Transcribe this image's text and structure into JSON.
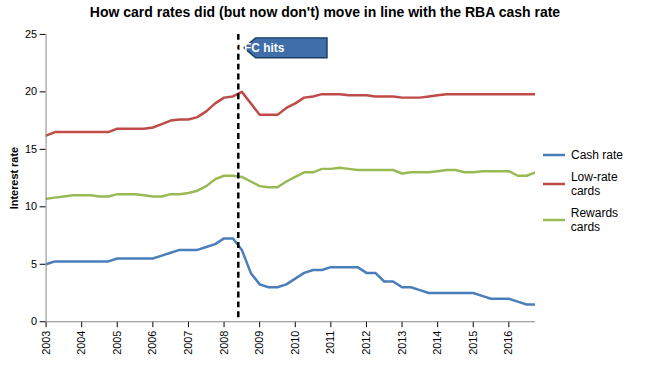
{
  "chart_data": {
    "type": "line",
    "title": "How card rates did (but now don't) move in line with the RBA cash rate",
    "y_label": "Interest rate",
    "x": [
      2003,
      2003.25,
      2003.5,
      2003.75,
      2004,
      2004.25,
      2004.5,
      2004.75,
      2005,
      2005.25,
      2005.5,
      2005.75,
      2006,
      2006.25,
      2006.5,
      2006.75,
      2007,
      2007.25,
      2007.5,
      2007.75,
      2008,
      2008.25,
      2008.5,
      2008.75,
      2009,
      2009.25,
      2009.5,
      2009.75,
      2010,
      2010.25,
      2010.5,
      2010.75,
      2011,
      2011.25,
      2011.5,
      2011.75,
      2012,
      2012.25,
      2012.5,
      2012.75,
      2013,
      2013.25,
      2013.5,
      2013.75,
      2014,
      2014.25,
      2014.5,
      2014.75,
      2015,
      2015.25,
      2015.5,
      2015.75,
      2016,
      2016.25,
      2016.5,
      2016.75
    ],
    "series": [
      {
        "name": "Cash rate",
        "color": "#4a7ebb",
        "values": [
          5.0,
          5.25,
          5.25,
          5.25,
          5.25,
          5.25,
          5.25,
          5.25,
          5.5,
          5.5,
          5.5,
          5.5,
          5.5,
          5.75,
          6.0,
          6.25,
          6.25,
          6.25,
          6.5,
          6.75,
          7.25,
          7.25,
          6.25,
          4.25,
          3.25,
          3.0,
          3.0,
          3.25,
          3.75,
          4.25,
          4.5,
          4.5,
          4.75,
          4.75,
          4.75,
          4.75,
          4.25,
          4.25,
          3.5,
          3.5,
          3.0,
          3.0,
          2.75,
          2.5,
          2.5,
          2.5,
          2.5,
          2.5,
          2.5,
          2.25,
          2.0,
          2.0,
          2.0,
          1.75,
          1.5,
          1.5
        ]
      },
      {
        "name": "Low-rate cards",
        "color": "#be4b48",
        "values": [
          16.2,
          16.5,
          16.5,
          16.5,
          16.5,
          16.5,
          16.5,
          16.5,
          16.8,
          16.8,
          16.8,
          16.8,
          16.9,
          17.2,
          17.5,
          17.6,
          17.6,
          17.8,
          18.3,
          19.0,
          19.5,
          19.6,
          20.0,
          19.0,
          18.0,
          18.0,
          18.0,
          18.6,
          19.0,
          19.5,
          19.6,
          19.8,
          19.8,
          19.8,
          19.7,
          19.7,
          19.7,
          19.6,
          19.6,
          19.6,
          19.5,
          19.5,
          19.5,
          19.6,
          19.7,
          19.8,
          19.8,
          19.8,
          19.8,
          19.8,
          19.8,
          19.8,
          19.8,
          19.8,
          19.8,
          19.8
        ]
      },
      {
        "name": "Rewards cards",
        "color": "#98b954",
        "values": [
          10.7,
          10.8,
          10.9,
          11.0,
          11.0,
          11.0,
          10.9,
          10.9,
          11.1,
          11.1,
          11.1,
          11.0,
          10.9,
          10.9,
          11.1,
          11.1,
          11.2,
          11.4,
          11.8,
          12.4,
          12.7,
          12.7,
          12.6,
          12.2,
          11.8,
          11.7,
          11.7,
          12.2,
          12.6,
          13.0,
          13.0,
          13.3,
          13.3,
          13.4,
          13.3,
          13.2,
          13.2,
          13.2,
          13.2,
          13.2,
          12.9,
          13.0,
          13.0,
          13.0,
          13.1,
          13.2,
          13.2,
          13.0,
          13.0,
          13.1,
          13.1,
          13.1,
          13.1,
          12.7,
          12.7,
          13.0
        ]
      }
    ],
    "xlim": [
      2003,
      2016.75
    ],
    "xticks": [
      2003,
      2004,
      2005,
      2006,
      2007,
      2008,
      2009,
      2010,
      2011,
      2012,
      2013,
      2014,
      2015,
      2016
    ],
    "ylim": [
      0,
      25
    ],
    "yticks": [
      0,
      5,
      10,
      15,
      20,
      25
    ],
    "legend": "right",
    "annotations": [
      {
        "text": "GFC hits",
        "x": 2008.4
      }
    ]
  }
}
